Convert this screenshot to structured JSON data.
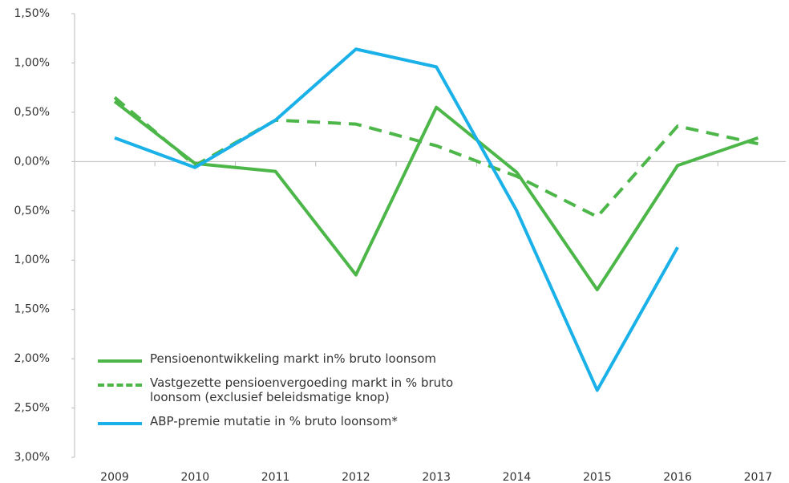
{
  "chart_data": {
    "type": "line",
    "categories": [
      "2009",
      "2010",
      "2011",
      "2012",
      "2013",
      "2014",
      "2015",
      "2016",
      "2017"
    ],
    "series": [
      {
        "name": "Pensioenontwikkeling markt in% bruto loonsom",
        "color": "#4cb748",
        "dash": false,
        "values": [
          0.61,
          -0.02,
          -0.1,
          -1.15,
          0.55,
          -0.11,
          -1.3,
          -0.04,
          0.24
        ]
      },
      {
        "name": "Vastgezette pensioenvergoeding markt in % bruto loonsom (exclusief beleidsmatige knop)",
        "color": "#4cb748",
        "dash": true,
        "values": [
          0.65,
          -0.04,
          0.42,
          0.38,
          0.16,
          -0.15,
          -0.56,
          0.36,
          0.18
        ]
      },
      {
        "name": "ABP-premie mutatie in % bruto loonsom*",
        "color": "#1ab0e8",
        "dash": false,
        "values": [
          0.24,
          -0.06,
          0.42,
          1.14,
          0.96,
          -0.5,
          -2.32,
          -0.87,
          null
        ]
      }
    ],
    "ylim": [
      -3,
      1.5
    ],
    "yticks": [
      {
        "value": 1.5,
        "label": "1,50%"
      },
      {
        "value": 1.0,
        "label": "1,00%"
      },
      {
        "value": 0.5,
        "label": "0,50%"
      },
      {
        "value": 0,
        "label": "0,00%"
      },
      {
        "value": -0.5,
        "label": "0,50%"
      },
      {
        "value": -1.0,
        "label": "1,00%"
      },
      {
        "value": -1.5,
        "label": "1,50%"
      },
      {
        "value": -2.0,
        "label": "2,00%"
      },
      {
        "value": -2.5,
        "label": "2,50%"
      },
      {
        "value": -3.0,
        "label": "3,00%"
      }
    ],
    "grid": false,
    "legend": "lower-left"
  }
}
